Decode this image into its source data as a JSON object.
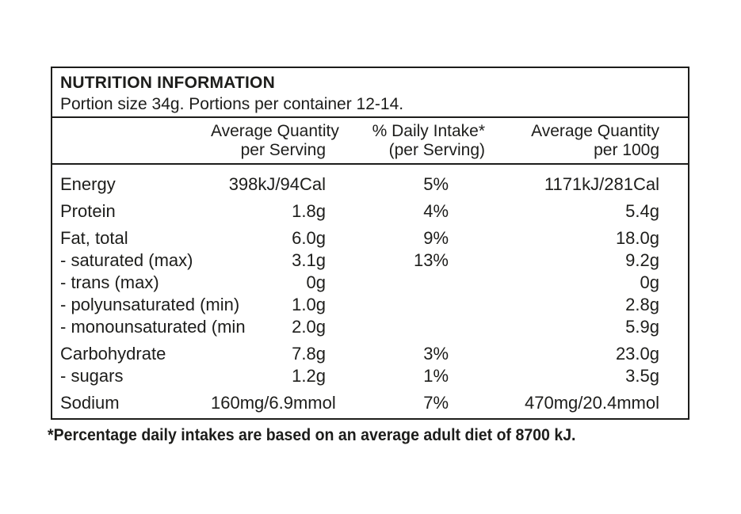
{
  "nutrition": {
    "title": "NUTRITION INFORMATION",
    "portion_info": "Portion size 34g. Portions per container 12-14.",
    "columns": {
      "per_serving": [
        "Average Quantity",
        "per Serving"
      ],
      "daily_intake": [
        "% Daily Intake*",
        "(per Serving)"
      ],
      "per_100g": [
        "Average Quantity",
        "per 100g"
      ]
    },
    "rows": [
      {
        "label": "Energy",
        "per_serving": "398kJ/94Cal",
        "daily_intake": "5%",
        "per_100g": "1171kJ/281Cal"
      },
      {
        "label": "Protein",
        "per_serving": "1.8g",
        "daily_intake": "4%",
        "per_100g": "5.4g"
      },
      {
        "label": "Fat, total",
        "per_serving": "6.0g",
        "daily_intake": "9%",
        "per_100g": "18.0g"
      },
      {
        "label": "- saturated (max)",
        "per_serving": "3.1g",
        "daily_intake": "13%",
        "per_100g": "9.2g"
      },
      {
        "label": "- trans (max)",
        "per_serving": "0g",
        "daily_intake": "",
        "per_100g": "0g"
      },
      {
        "label": "- polyunsaturated (min)",
        "per_serving": "1.0g",
        "daily_intake": "",
        "per_100g": "2.8g"
      },
      {
        "label": "- monounsaturated (min",
        "per_serving": "2.0g",
        "daily_intake": "",
        "per_100g": "5.9g"
      },
      {
        "label": "Carbohydrate",
        "per_serving": "7.8g",
        "daily_intake": "3%",
        "per_100g": "23.0g"
      },
      {
        "label": "- sugars",
        "per_serving": "1.2g",
        "daily_intake": "1%",
        "per_100g": "3.5g"
      },
      {
        "label": "Sodium",
        "per_serving": "160mg/6.9mmol",
        "daily_intake": "7%",
        "per_100g": "470mg/20.4mmol"
      }
    ],
    "footnote": "*Percentage daily intakes are based on an average adult diet of 8700 kJ.",
    "colors": {
      "text": "#1d1d1b",
      "border": "#1d1d1b",
      "background": "#ffffff"
    }
  }
}
